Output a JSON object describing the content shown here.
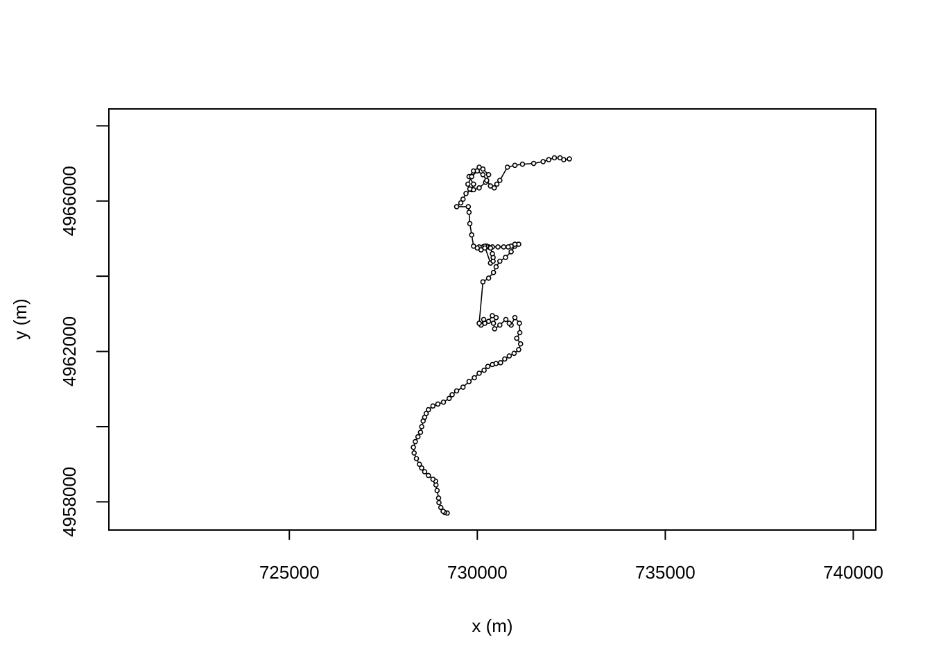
{
  "chart_data": {
    "type": "line",
    "title": "",
    "xlabel": "x (m)",
    "ylabel": "y (m)",
    "xlim": [
      720200,
      740600
    ],
    "ylim": [
      4957250,
      4968450
    ],
    "xticks": [
      725000,
      730000,
      735000,
      740000
    ],
    "xtick_labels": [
      "725000",
      "730000",
      "735000",
      "740000"
    ],
    "yticks": [
      4958000,
      4960000,
      4962000,
      4964000,
      4966000,
      4968000
    ],
    "ytick_labels": [
      "4958000",
      "",
      "4962000",
      "",
      "4966000",
      ""
    ],
    "grid": false,
    "legend": "none",
    "marker": "open-circle",
    "line_color": "#000000",
    "series": [
      {
        "x": [
          729200,
          729130,
          729090,
          729030,
          728980,
          728970,
          728930,
          728900,
          728890,
          728820,
          728700,
          728600,
          728520,
          728460,
          728380,
          728320,
          728300,
          728350,
          728420,
          728490,
          728520,
          728560,
          728600,
          728640,
          728700,
          728820,
          728950,
          729100,
          729250,
          729330,
          729450,
          729620,
          729780,
          729920,
          730050,
          730180,
          730280,
          730400,
          730500,
          730620,
          730730,
          730850,
          730980,
          731100,
          731150,
          731050,
          731130,
          731120,
          731000,
          730900,
          730850,
          730760,
          730600,
          730460,
          730430,
          730500,
          730400,
          730300,
          730200,
          730170,
          730100,
          730050,
          730150,
          730300,
          730430,
          730500,
          730600,
          730750,
          730900,
          731000,
          731100,
          731000,
          730900,
          730820,
          730700,
          730550,
          730400,
          730300,
          730150,
          730050,
          730200,
          730350,
          730420,
          730420,
          730400,
          730350,
          730250,
          730200,
          730200,
          730100,
          730000,
          729900,
          729850,
          729800,
          729780,
          729760,
          729450,
          729560,
          729620,
          729700,
          729850,
          729900,
          729780,
          729900,
          730050,
          730150,
          730300,
          730220,
          730050,
          729900,
          729800,
          729750,
          729850,
          730000,
          730150,
          730250,
          730350,
          730450,
          730520,
          730600,
          730800,
          731000,
          731200,
          731500,
          731750,
          731900,
          732050,
          732200,
          732300,
          732450
        ],
        "y": [
          4957700,
          4957720,
          4957750,
          4957850,
          4957980,
          4958100,
          4958300,
          4958450,
          4958550,
          4958600,
          4958700,
          4958800,
          4958900,
          4959000,
          4959150,
          4959300,
          4959450,
          4959600,
          4959730,
          4959850,
          4960000,
          4960150,
          4960250,
          4960350,
          4960450,
          4960550,
          4960600,
          4960650,
          4960750,
          4960850,
          4960950,
          4961050,
          4961200,
          4961300,
          4961420,
          4961500,
          4961600,
          4961650,
          4961680,
          4961700,
          4961800,
          4961880,
          4961950,
          4962050,
          4962200,
          4962350,
          4962500,
          4962750,
          4962900,
          4962700,
          4962750,
          4962850,
          4962700,
          4962600,
          4962750,
          4962900,
          4962950,
          4962800,
          4962750,
          4962850,
          4962700,
          4962750,
          4963850,
          4963950,
          4964100,
          4964250,
          4964400,
          4964500,
          4964650,
          4964800,
          4964850,
          4964850,
          4964800,
          4964780,
          4964780,
          4964780,
          4964780,
          4964780,
          4964780,
          4964780,
          4964780,
          4964350,
          4964400,
          4964500,
          4964600,
          4964750,
          4964800,
          4964800,
          4964750,
          4964700,
          4964750,
          4964800,
          4965100,
          4965400,
          4965700,
          4965850,
          4965850,
          4965950,
          4966050,
          4966200,
          4966300,
          4966450,
          4966650,
          4966800,
          4966900,
          4966850,
          4966700,
          4966500,
          4966350,
          4966300,
          4966320,
          4966450,
          4966650,
          4966800,
          4966700,
          4966550,
          4966400,
          4966350,
          4966450,
          4966550,
          4966900,
          4966950,
          4966980,
          4967000,
          4967050,
          4967100,
          4967150,
          4967150,
          4967100,
          4967120
        ]
      }
    ]
  }
}
